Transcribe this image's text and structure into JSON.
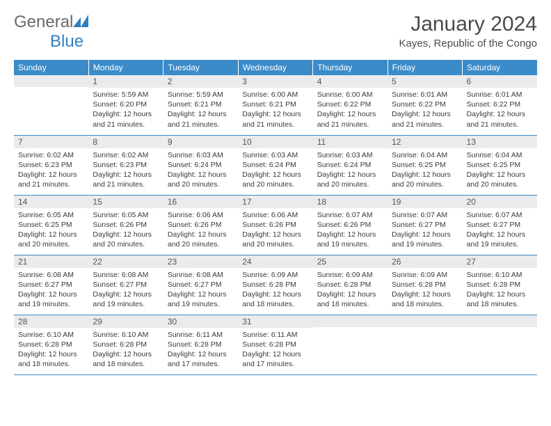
{
  "logo": {
    "text1": "General",
    "text2": "Blue",
    "color1": "#6a6a6a",
    "color2": "#2f7fbf",
    "icon_color": "#2f7fbf"
  },
  "title": "January 2024",
  "location": "Kayes, Republic of the Congo",
  "colors": {
    "header_bg": "#3b8bc9",
    "header_text": "#ffffff",
    "daynum_bg": "#e9ebed",
    "daynum_text": "#555555",
    "body_text": "#3a3a3a",
    "row_border": "#3b8bc9"
  },
  "weekdays": [
    "Sunday",
    "Monday",
    "Tuesday",
    "Wednesday",
    "Thursday",
    "Friday",
    "Saturday"
  ],
  "start_offset": 1,
  "days": [
    {
      "n": 1,
      "sunrise": "5:59 AM",
      "sunset": "6:20 PM",
      "daylight": "12 hours and 21 minutes."
    },
    {
      "n": 2,
      "sunrise": "5:59 AM",
      "sunset": "6:21 PM",
      "daylight": "12 hours and 21 minutes."
    },
    {
      "n": 3,
      "sunrise": "6:00 AM",
      "sunset": "6:21 PM",
      "daylight": "12 hours and 21 minutes."
    },
    {
      "n": 4,
      "sunrise": "6:00 AM",
      "sunset": "6:22 PM",
      "daylight": "12 hours and 21 minutes."
    },
    {
      "n": 5,
      "sunrise": "6:01 AM",
      "sunset": "6:22 PM",
      "daylight": "12 hours and 21 minutes."
    },
    {
      "n": 6,
      "sunrise": "6:01 AM",
      "sunset": "6:22 PM",
      "daylight": "12 hours and 21 minutes."
    },
    {
      "n": 7,
      "sunrise": "6:02 AM",
      "sunset": "6:23 PM",
      "daylight": "12 hours and 21 minutes."
    },
    {
      "n": 8,
      "sunrise": "6:02 AM",
      "sunset": "6:23 PM",
      "daylight": "12 hours and 21 minutes."
    },
    {
      "n": 9,
      "sunrise": "6:03 AM",
      "sunset": "6:24 PM",
      "daylight": "12 hours and 20 minutes."
    },
    {
      "n": 10,
      "sunrise": "6:03 AM",
      "sunset": "6:24 PM",
      "daylight": "12 hours and 20 minutes."
    },
    {
      "n": 11,
      "sunrise": "6:03 AM",
      "sunset": "6:24 PM",
      "daylight": "12 hours and 20 minutes."
    },
    {
      "n": 12,
      "sunrise": "6:04 AM",
      "sunset": "6:25 PM",
      "daylight": "12 hours and 20 minutes."
    },
    {
      "n": 13,
      "sunrise": "6:04 AM",
      "sunset": "6:25 PM",
      "daylight": "12 hours and 20 minutes."
    },
    {
      "n": 14,
      "sunrise": "6:05 AM",
      "sunset": "6:25 PM",
      "daylight": "12 hours and 20 minutes."
    },
    {
      "n": 15,
      "sunrise": "6:05 AM",
      "sunset": "6:26 PM",
      "daylight": "12 hours and 20 minutes."
    },
    {
      "n": 16,
      "sunrise": "6:06 AM",
      "sunset": "6:26 PM",
      "daylight": "12 hours and 20 minutes."
    },
    {
      "n": 17,
      "sunrise": "6:06 AM",
      "sunset": "6:26 PM",
      "daylight": "12 hours and 20 minutes."
    },
    {
      "n": 18,
      "sunrise": "6:07 AM",
      "sunset": "6:26 PM",
      "daylight": "12 hours and 19 minutes."
    },
    {
      "n": 19,
      "sunrise": "6:07 AM",
      "sunset": "6:27 PM",
      "daylight": "12 hours and 19 minutes."
    },
    {
      "n": 20,
      "sunrise": "6:07 AM",
      "sunset": "6:27 PM",
      "daylight": "12 hours and 19 minutes."
    },
    {
      "n": 21,
      "sunrise": "6:08 AM",
      "sunset": "6:27 PM",
      "daylight": "12 hours and 19 minutes."
    },
    {
      "n": 22,
      "sunrise": "6:08 AM",
      "sunset": "6:27 PM",
      "daylight": "12 hours and 19 minutes."
    },
    {
      "n": 23,
      "sunrise": "6:08 AM",
      "sunset": "6:27 PM",
      "daylight": "12 hours and 19 minutes."
    },
    {
      "n": 24,
      "sunrise": "6:09 AM",
      "sunset": "6:28 PM",
      "daylight": "12 hours and 18 minutes."
    },
    {
      "n": 25,
      "sunrise": "6:09 AM",
      "sunset": "6:28 PM",
      "daylight": "12 hours and 18 minutes."
    },
    {
      "n": 26,
      "sunrise": "6:09 AM",
      "sunset": "6:28 PM",
      "daylight": "12 hours and 18 minutes."
    },
    {
      "n": 27,
      "sunrise": "6:10 AM",
      "sunset": "6:28 PM",
      "daylight": "12 hours and 18 minutes."
    },
    {
      "n": 28,
      "sunrise": "6:10 AM",
      "sunset": "6:28 PM",
      "daylight": "12 hours and 18 minutes."
    },
    {
      "n": 29,
      "sunrise": "6:10 AM",
      "sunset": "6:28 PM",
      "daylight": "12 hours and 18 minutes."
    },
    {
      "n": 30,
      "sunrise": "6:11 AM",
      "sunset": "6:28 PM",
      "daylight": "12 hours and 17 minutes."
    },
    {
      "n": 31,
      "sunrise": "6:11 AM",
      "sunset": "6:28 PM",
      "daylight": "12 hours and 17 minutes."
    }
  ],
  "labels": {
    "sunrise": "Sunrise:",
    "sunset": "Sunset:",
    "daylight": "Daylight:"
  }
}
